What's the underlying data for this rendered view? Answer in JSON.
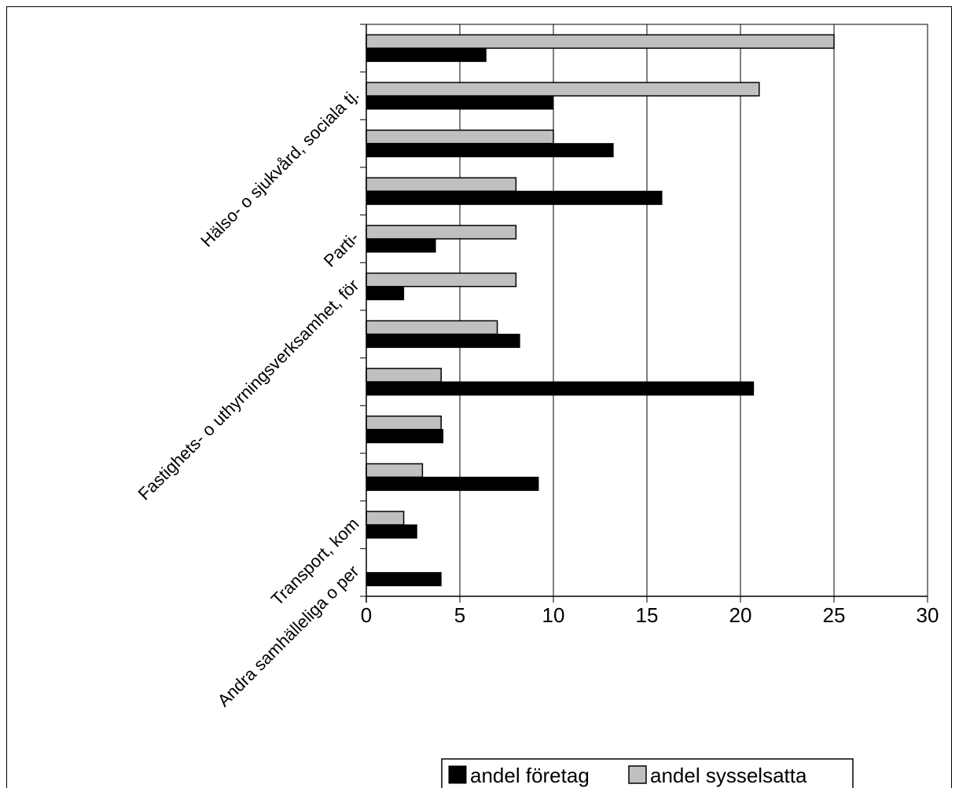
{
  "chart_data": {
    "type": "bar",
    "orientation": "horizontal",
    "category_labels_visible": [
      {
        "text": "Hälso- o sjukvård, sociala tj.",
        "row": 1
      },
      {
        "text": "Parti-",
        "row": 4
      },
      {
        "text": "Fastighets- o uthyrningsverksamhet, för",
        "row": 5
      },
      {
        "text": "Transport, kom",
        "row": 10
      },
      {
        "text": "Andra samhälleliga o per",
        "row": 11
      }
    ],
    "series": [
      {
        "name": "andel företag",
        "color": "#000000",
        "values": [
          6.4,
          10.0,
          13.2,
          15.8,
          3.7,
          2.0,
          8.2,
          20.7,
          4.1,
          9.2,
          2.7,
          4.0
        ]
      },
      {
        "name": "andel sysselsatta",
        "color": "#c0c0c0",
        "values": [
          25,
          21,
          10,
          8,
          8,
          8,
          7,
          4,
          4,
          3,
          2,
          0
        ]
      }
    ],
    "xlim": [
      0,
      30
    ],
    "xticks": [
      "0",
      "5",
      "10",
      "15",
      "20",
      "25",
      "30"
    ],
    "grid": "vertical",
    "legend": "bottom"
  }
}
